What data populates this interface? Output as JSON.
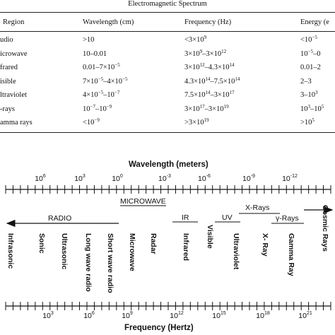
{
  "table": {
    "title": "Electromagnetic Spectrum",
    "headers": [
      "Region",
      "Wavelength (cm)",
      "Frequency (Hz)",
      "Energy (e"
    ],
    "rows": [
      {
        "region": "udio",
        "wavelength": ">10",
        "frequency": "<3×10^9",
        "energy": "<10^−5"
      },
      {
        "region": "icrowave",
        "wavelength": "10–0.01",
        "frequency": "3×10^9–3×10^12",
        "energy": "10^−5–0"
      },
      {
        "region": "frared",
        "wavelength": "0.01–7×10^−5",
        "frequency": "3×10^12–4.3×10^14",
        "energy": "0.01–2"
      },
      {
        "region": "isible",
        "wavelength": "7×10^−5–4×10^−5",
        "frequency": "4.3×10^14–7.5×10^14",
        "energy": "2–3"
      },
      {
        "region": "ltraviolet",
        "wavelength": "4×10^−5–10^−7",
        "frequency": "7.5×10^14–3×10^17",
        "energy": "3–10^3"
      },
      {
        "region": "-rays",
        "wavelength": "10^−7–10^−9",
        "frequency": "3×10^17–3×10^19",
        "energy": "10^3–10^5"
      },
      {
        "region": "amma rays",
        "wavelength": "<10^−9",
        "frequency": ">3×10^19",
        "energy": ">10^5"
      }
    ]
  },
  "diagram": {
    "wavelength_title": "Wavelength (meters)",
    "wavelength_ticks": [
      "10^6",
      "10^3",
      "10^0",
      "10^-3",
      "10^-6",
      "10^-9",
      "10^-12"
    ],
    "frequency_title": "Frequency (Hertz)",
    "frequency_ticks": [
      "10^3",
      "10^6",
      "10^9",
      "10^12",
      "10^15",
      "10^18",
      "10^21"
    ],
    "bands": {
      "radio": "RADIO",
      "microwave": "MICROWAVE",
      "ir": "IR",
      "uv": "UV",
      "xrays": "X-Rays",
      "gamma": "γ-Rays"
    },
    "region_labels": [
      "Infrasonic",
      "Sonic",
      "Ultrasonic",
      "Long wave radio",
      "Short wave radio",
      "Microwave",
      "Radar",
      "Infrared",
      "Visible",
      "Ultraviolet",
      "X- Ray",
      "Gamma Ray",
      "Cosmic Rays"
    ]
  }
}
